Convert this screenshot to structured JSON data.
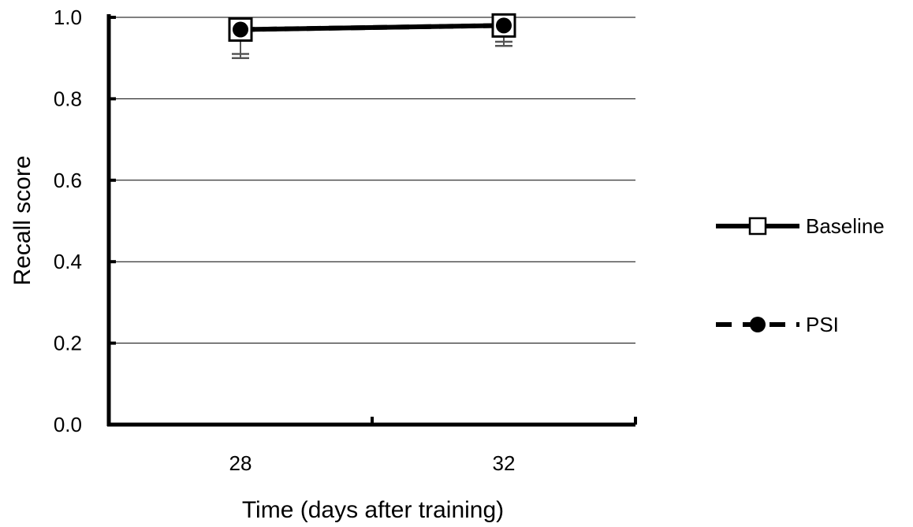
{
  "chart_data": {
    "type": "line",
    "title": "",
    "xlabel": "Time (days after  training)",
    "ylabel": "Recall score",
    "categories": [
      "28",
      "32"
    ],
    "ylim": [
      0,
      1.0
    ],
    "yticks": [
      "0.0",
      "0.2",
      "0.4",
      "0.6",
      "0.8",
      "1.0"
    ],
    "grid": true,
    "legend_position": "right",
    "series": [
      {
        "name": "Baseline",
        "values": [
          0.97,
          0.98
        ],
        "error_minus": [
          0.07,
          0.05
        ],
        "marker": "open-square",
        "line_style": "solid",
        "color": "#000000"
      },
      {
        "name": "PSI",
        "values": [
          0.97,
          0.98
        ],
        "error_minus": [
          0.06,
          0.04
        ],
        "marker": "filled-circle",
        "line_style": "dashed",
        "color": "#000000"
      }
    ],
    "gridline_color": "#000000",
    "errorbar_color": "#555555"
  }
}
